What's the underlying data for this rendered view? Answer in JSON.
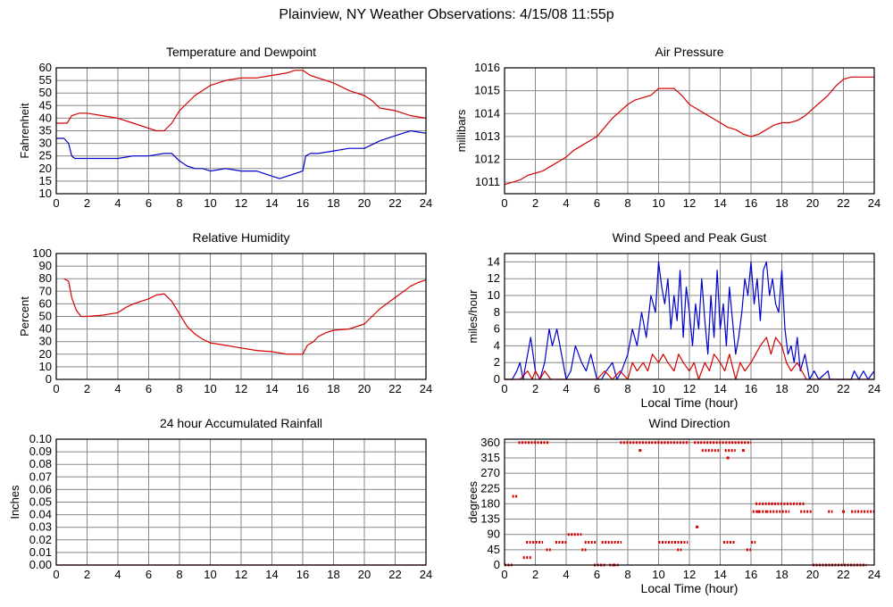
{
  "page_title": "Plainview, NY Weather Observations: 4/15/08 11:55p",
  "colors": {
    "red": "#d40000",
    "blue": "#0000cc",
    "grid": "#888888",
    "frame": "#000000"
  },
  "chart_data": [
    {
      "id": "temp",
      "type": "line",
      "title": "Temperature and Dewpoint",
      "xlabel": "",
      "ylabel": "Fahrenheit",
      "xlim": [
        0,
        24
      ],
      "ylim": [
        10,
        60
      ],
      "xticks": [
        0,
        2,
        4,
        6,
        8,
        10,
        12,
        14,
        16,
        18,
        20,
        22,
        24
      ],
      "yticks": [
        10,
        15,
        20,
        25,
        30,
        35,
        40,
        45,
        50,
        55,
        60
      ],
      "grid": true,
      "series": [
        {
          "color": "#d40000",
          "x": [
            0,
            0.7,
            1,
            1.5,
            2,
            3,
            4,
            5,
            6,
            6.5,
            7,
            7.5,
            8,
            8.5,
            9,
            9.5,
            10,
            11,
            12,
            13,
            14,
            15,
            15.5,
            16,
            16.5,
            17,
            18,
            19,
            20,
            20.5,
            21,
            22,
            23,
            24
          ],
          "y": [
            38,
            38,
            41,
            42,
            42,
            41,
            40,
            38,
            36,
            35,
            35,
            38,
            43,
            46,
            49,
            51,
            53,
            55,
            56,
            56,
            57,
            58,
            59,
            59,
            57,
            56,
            54,
            51,
            49,
            47,
            44,
            43,
            41,
            40
          ]
        },
        {
          "color": "#0000cc",
          "x": [
            0,
            0.5,
            0.8,
            1,
            1.2,
            2,
            3,
            4,
            5,
            6,
            7,
            7.5,
            8,
            8.5,
            9,
            9.5,
            10,
            11,
            12,
            13,
            14,
            14.5,
            15,
            15.5,
            16,
            16.2,
            16.5,
            17,
            18,
            19,
            20,
            21,
            22,
            22.5,
            23,
            24
          ],
          "y": [
            32,
            32,
            30,
            25,
            24,
            24,
            24,
            24,
            25,
            25,
            26,
            26,
            23,
            21,
            20,
            20,
            19,
            20,
            19,
            19,
            17,
            16,
            17,
            18,
            19,
            25,
            26,
            26,
            27,
            28,
            28,
            31,
            33,
            34,
            35,
            34
          ]
        }
      ]
    },
    {
      "id": "pressure",
      "type": "line",
      "title": "Air Pressure",
      "xlabel": "",
      "ylabel": "millibars",
      "xlim": [
        0,
        24
      ],
      "ylim": [
        1010.5,
        1016
      ],
      "xticks": [
        0,
        2,
        4,
        6,
        8,
        10,
        12,
        14,
        16,
        18,
        20,
        22,
        24
      ],
      "yticks": [
        1011,
        1012,
        1013,
        1014,
        1015,
        1016
      ],
      "grid": true,
      "series": [
        {
          "color": "#d40000",
          "x": [
            0,
            0.5,
            1,
            1.5,
            2,
            2.5,
            3,
            3.5,
            4,
            4.5,
            5,
            5.5,
            6,
            6.5,
            7,
            7.5,
            8,
            8.5,
            9,
            9.5,
            10,
            10.5,
            11,
            11.5,
            12,
            12.5,
            13,
            13.5,
            14,
            14.5,
            15,
            15.5,
            16,
            16.5,
            17,
            17.5,
            18,
            18.5,
            19,
            19.5,
            20,
            20.5,
            21,
            21.5,
            22,
            22.5,
            23,
            23.5,
            24
          ],
          "y": [
            1010.9,
            1011,
            1011.1,
            1011.3,
            1011.4,
            1011.5,
            1011.7,
            1011.9,
            1012.1,
            1012.4,
            1012.6,
            1012.8,
            1013,
            1013.4,
            1013.8,
            1014.1,
            1014.4,
            1014.6,
            1014.7,
            1014.8,
            1015.1,
            1015.1,
            1015.1,
            1014.8,
            1014.4,
            1014.2,
            1014,
            1013.8,
            1013.6,
            1013.4,
            1013.3,
            1013.1,
            1013,
            1013.1,
            1013.3,
            1013.5,
            1013.6,
            1013.6,
            1013.7,
            1013.9,
            1014.2,
            1014.5,
            1014.8,
            1015.2,
            1015.5,
            1015.6,
            1015.6,
            1015.6,
            1015.6
          ]
        }
      ]
    },
    {
      "id": "humidity",
      "type": "line",
      "title": "Relative Humidity",
      "xlabel": "",
      "ylabel": "Percent",
      "xlim": [
        0,
        24
      ],
      "ylim": [
        0,
        100
      ],
      "xticks": [
        0,
        2,
        4,
        6,
        8,
        10,
        12,
        14,
        16,
        18,
        20,
        22,
        24
      ],
      "yticks": [
        0,
        10,
        20,
        30,
        40,
        50,
        60,
        70,
        80,
        90,
        100
      ],
      "grid": true,
      "series": [
        {
          "color": "#d40000",
          "x": [
            0.5,
            0.8,
            1,
            1.3,
            1.6,
            2,
            3,
            4,
            4.5,
            5,
            5.5,
            6,
            6.5,
            7,
            7.5,
            8,
            8.5,
            9,
            9.5,
            10,
            11,
            12,
            13,
            14,
            15,
            15.5,
            16,
            16.3,
            16.7,
            17,
            17.5,
            18,
            19,
            20,
            20.5,
            21,
            22,
            23,
            23.5,
            24
          ],
          "y": [
            80,
            78,
            65,
            55,
            50,
            50,
            51,
            53,
            57,
            60,
            62,
            64,
            67,
            68,
            62,
            52,
            42,
            36,
            32,
            29,
            27,
            25,
            23,
            22,
            20,
            20,
            20,
            27,
            30,
            34,
            37,
            39,
            40,
            44,
            50,
            56,
            65,
            74,
            77,
            79
          ]
        }
      ]
    },
    {
      "id": "wind",
      "type": "line",
      "title": "Wind Speed and Peak Gust",
      "xlabel": "Local Time (hour)",
      "ylabel": "miles/hour",
      "xlim": [
        0,
        24
      ],
      "ylim": [
        0,
        15
      ],
      "xticks": [
        0,
        2,
        4,
        6,
        8,
        10,
        12,
        14,
        16,
        18,
        20,
        22,
        24
      ],
      "yticks": [
        0,
        2,
        4,
        6,
        8,
        10,
        12,
        14
      ],
      "grid": true,
      "series": [
        {
          "color": "#0000cc",
          "x": [
            0,
            0.5,
            0.8,
            1,
            1.2,
            1.5,
            1.7,
            2,
            2.3,
            2.6,
            2.9,
            3.1,
            3.4,
            3.7,
            4,
            4.3,
            4.6,
            5,
            5.3,
            5.6,
            6,
            6.3,
            6.6,
            7,
            7.3,
            7.6,
            8,
            8.3,
            8.6,
            8.9,
            9.2,
            9.5,
            9.8,
            10,
            10.2,
            10.4,
            10.6,
            10.8,
            11,
            11.2,
            11.4,
            11.6,
            11.8,
            12,
            12.2,
            12.4,
            12.6,
            12.8,
            13,
            13.2,
            13.4,
            13.6,
            13.8,
            14,
            14.2,
            14.4,
            14.6,
            14.8,
            15,
            15.2,
            15.4,
            15.6,
            15.8,
            16,
            16.2,
            16.4,
            16.6,
            16.8,
            17,
            17.2,
            17.4,
            17.6,
            17.8,
            18,
            18.2,
            18.4,
            18.6,
            18.8,
            19,
            19.2,
            19.5,
            19.8,
            20.1,
            20.4,
            21,
            21.1,
            22,
            22.5,
            22.7,
            23,
            23.3,
            23.6,
            24
          ],
          "y": [
            0,
            0,
            1,
            2,
            0,
            3,
            5,
            1,
            0,
            2,
            6,
            4,
            6,
            3,
            0,
            1,
            4,
            2,
            1,
            3,
            0,
            0,
            1,
            2,
            0,
            1,
            3,
            6,
            4,
            8,
            5,
            10,
            8,
            14,
            11,
            9,
            12,
            6,
            10,
            7,
            13,
            5,
            11,
            8,
            4,
            9,
            6,
            12,
            7,
            3,
            10,
            5,
            13,
            6,
            9,
            4,
            11,
            7,
            3,
            5,
            8,
            12,
            10,
            14,
            9,
            12,
            7,
            13,
            14,
            10,
            12,
            9,
            8,
            13,
            6,
            3,
            4,
            2,
            5,
            1,
            3,
            0,
            1,
            0,
            1,
            0,
            0,
            0,
            1,
            0,
            1,
            0,
            1
          ]
        },
        {
          "color": "#d40000",
          "x": [
            0,
            1,
            1.5,
            1.8,
            2,
            2.3,
            2.6,
            3,
            6,
            6.5,
            7,
            7.5,
            8,
            8.3,
            8.6,
            9,
            9.3,
            9.6,
            10,
            10.3,
            10.6,
            11,
            11.3,
            11.6,
            12,
            12.3,
            12.6,
            13,
            13.3,
            13.6,
            14,
            14.3,
            14.6,
            15,
            15.3,
            15.6,
            16,
            16.3,
            16.6,
            17,
            17.3,
            17.6,
            18,
            18.3,
            18.6,
            19,
            19.3,
            19.6,
            20,
            24
          ],
          "y": [
            0,
            0,
            1,
            0,
            1,
            0,
            1,
            0,
            0,
            1,
            0,
            1,
            0,
            2,
            1,
            2,
            1,
            3,
            2,
            3,
            2,
            1,
            3,
            2,
            1,
            2,
            0,
            2,
            1,
            3,
            2,
            1,
            3,
            0,
            2,
            1,
            2,
            3,
            4,
            5,
            3,
            5,
            4,
            2,
            1,
            2,
            1,
            0,
            0,
            0
          ]
        }
      ]
    },
    {
      "id": "rain",
      "type": "line",
      "title": "24 hour Accumulated Rainfall",
      "xlabel": "",
      "ylabel": "Inches",
      "xlim": [
        0,
        24
      ],
      "ylim": [
        0,
        0.1
      ],
      "xticks": [
        0,
        2,
        4,
        6,
        8,
        10,
        12,
        14,
        16,
        18,
        20,
        22,
        24
      ],
      "yticks": [
        "0.00",
        "0.01",
        "0.02",
        "0.03",
        "0.04",
        "0.05",
        "0.06",
        "0.07",
        "0.08",
        "0.09",
        "0.10"
      ],
      "grid": true,
      "series": [
        {
          "color": "#d40000",
          "x": [
            0,
            24
          ],
          "y": [
            0,
            0
          ]
        }
      ]
    },
    {
      "id": "direction",
      "type": "scatter",
      "title": "Wind Direction",
      "xlabel": "Local Time (hour)",
      "ylabel": "degrees",
      "xlim": [
        0,
        24
      ],
      "ylim": [
        0,
        370
      ],
      "xticks": [
        0,
        2,
        4,
        6,
        8,
        10,
        12,
        14,
        16,
        18,
        20,
        22,
        24
      ],
      "yticks": [
        0,
        45,
        90,
        135,
        180,
        225,
        270,
        315,
        360
      ],
      "grid": true,
      "series": [
        {
          "color": "#d40000",
          "segments": [
            [
              0,
              0.5,
              0
            ],
            [
              0.5,
              0.9,
              202
            ],
            [
              0.9,
              2.9,
              360
            ],
            [
              1.2,
              1.8,
              22
            ],
            [
              1.4,
              2.5,
              67
            ],
            [
              3.3,
              4.1,
              67
            ],
            [
              2.7,
              3,
              45
            ],
            [
              4.1,
              5,
              90
            ],
            [
              5,
              5.3,
              45
            ],
            [
              5.2,
              6,
              67
            ],
            [
              5.8,
              6.6,
              0
            ],
            [
              6.3,
              7.6,
              67
            ],
            [
              6.8,
              7.1,
              0
            ],
            [
              7.1,
              7.4,
              0
            ],
            [
              7.5,
              12,
              360
            ],
            [
              10,
              11.9,
              67
            ],
            [
              11.2,
              11.5,
              45
            ],
            [
              12.3,
              16,
              360
            ],
            [
              12.8,
              14,
              337
            ],
            [
              14.3,
              15,
              337
            ],
            [
              14.2,
              15,
              67
            ],
            [
              15.7,
              16,
              45
            ],
            [
              16,
              16.3,
              67
            ],
            [
              16.1,
              17,
              157
            ],
            [
              16.3,
              17.5,
              180
            ],
            [
              17.3,
              19.5,
              180
            ],
            [
              17,
              18.5,
              157
            ],
            [
              19.2,
              20,
              157
            ],
            [
              20,
              23.5,
              0
            ],
            [
              21,
              21.3,
              157
            ],
            [
              22.5,
              24,
              157
            ]
          ],
          "points": [
            [
              8.8,
              337
            ],
            [
              12.5,
              112
            ],
            [
              14.5,
              315
            ],
            [
              15.5,
              337
            ],
            [
              16.5,
              157
            ],
            [
              22,
              157
            ]
          ]
        }
      ]
    }
  ]
}
